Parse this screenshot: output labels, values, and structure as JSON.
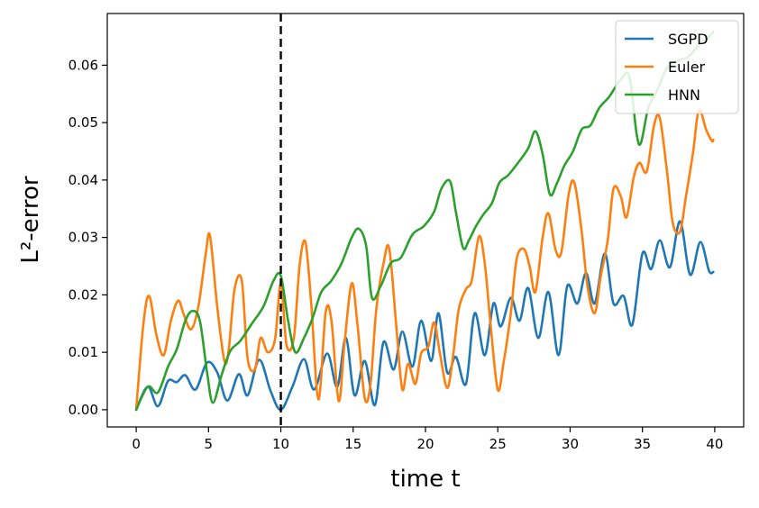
{
  "chart_data": {
    "type": "line",
    "xlabel": "time t",
    "ylabel": "L²-error",
    "xlim": [
      -2,
      42
    ],
    "ylim": [
      -0.003,
      0.069
    ],
    "xticks": [
      0,
      5,
      10,
      15,
      20,
      25,
      30,
      35,
      40
    ],
    "xtick_labels": [
      "0",
      "5",
      "10",
      "15",
      "20",
      "25",
      "30",
      "35",
      "40"
    ],
    "yticks": [
      0.0,
      0.01,
      0.02,
      0.03,
      0.04,
      0.05,
      0.06
    ],
    "ytick_labels": [
      "0.00",
      "0.01",
      "0.02",
      "0.03",
      "0.04",
      "0.05",
      "0.06"
    ],
    "vline": {
      "x": 10,
      "style": "dashed",
      "color": "#000000"
    },
    "legend": {
      "position": "top-right"
    },
    "grid": false,
    "series": [
      {
        "name": "SGPD",
        "color": "#1f77b4",
        "x": [
          0,
          0.8,
          1.5,
          2.2,
          2.8,
          3.4,
          4.1,
          4.9,
          5.6,
          6.3,
          7.1,
          7.7,
          8.5,
          9.3,
          10,
          10.8,
          11.6,
          12.3,
          13.2,
          13.9,
          14.5,
          15.1,
          15.8,
          16.5,
          17.1,
          17.8,
          18.4,
          19.1,
          19.7,
          20.4,
          20.9,
          21.5,
          22.1,
          22.8,
          23.4,
          24.1,
          24.7,
          25.2,
          25.9,
          26.5,
          27.1,
          27.8,
          28.5,
          29.2,
          29.8,
          30.5,
          31.1,
          31.7,
          32.4,
          33,
          33.7,
          34.3,
          35,
          35.6,
          36.2,
          36.9,
          37.6,
          38.3,
          39,
          39.6,
          39.9
        ],
        "y": [
          0.0,
          0.004,
          0.0006,
          0.005,
          0.0048,
          0.006,
          0.0035,
          0.0082,
          0.0065,
          0.0016,
          0.0062,
          0.0025,
          0.0087,
          0.0032,
          0.0,
          0.004,
          0.0088,
          0.0035,
          0.0098,
          0.004,
          0.0125,
          0.0025,
          0.0085,
          0.0008,
          0.0118,
          0.007,
          0.0136,
          0.0075,
          0.0155,
          0.0085,
          0.0168,
          0.0065,
          0.0092,
          0.0045,
          0.0168,
          0.0095,
          0.0185,
          0.0145,
          0.0195,
          0.0155,
          0.0212,
          0.0125,
          0.0205,
          0.0095,
          0.0215,
          0.0185,
          0.0238,
          0.0185,
          0.0272,
          0.0185,
          0.0198,
          0.0148,
          0.0272,
          0.0245,
          0.0295,
          0.0248,
          0.0328,
          0.0235,
          0.0292,
          0.0242,
          0.024
        ]
      },
      {
        "name": "Euler",
        "color": "#ff7f0e",
        "x": [
          0,
          0.5,
          0.9,
          1.4,
          1.9,
          2.4,
          2.9,
          3.3,
          3.8,
          4.3,
          4.8,
          5.1,
          5.6,
          6.1,
          6.4,
          6.8,
          7.3,
          7.7,
          8.2,
          8.6,
          9.1,
          9.6,
          10,
          10.4,
          10.9,
          11.3,
          11.7,
          12.1,
          12.6,
          13.1,
          13.5,
          14,
          14.4,
          14.9,
          15.3,
          15.8,
          16.2,
          16.6,
          17.1,
          17.5,
          18,
          18.4,
          18.8,
          19.3,
          19.7,
          20.2,
          20.6,
          21,
          21.5,
          21.9,
          22.3,
          22.8,
          23.2,
          23.7,
          24.1,
          24.5,
          25,
          25.4,
          25.9,
          26.3,
          26.8,
          27.2,
          27.6,
          28.1,
          28.5,
          29,
          29.4,
          29.9,
          30.3,
          30.8,
          31.2,
          31.7,
          32.1,
          32.6,
          33,
          33.5,
          33.9,
          34.4,
          34.8,
          35.3,
          35.8,
          36.2,
          36.7,
          37.1,
          37.6,
          38,
          38.5,
          38.9,
          39.4,
          39.8,
          39.9
        ],
        "y": [
          0.0,
          0.015,
          0.0198,
          0.013,
          0.0095,
          0.0155,
          0.019,
          0.0165,
          0.014,
          0.018,
          0.027,
          0.0303,
          0.018,
          0.0085,
          0.0105,
          0.021,
          0.0225,
          0.009,
          0.007,
          0.0125,
          0.01,
          0.0123,
          0.022,
          0.0112,
          0.0125,
          0.0252,
          0.0292,
          0.0185,
          0.0018,
          0.017,
          0.0155,
          0.0015,
          0.0115,
          0.022,
          0.0148,
          0.002,
          0.0045,
          0.0175,
          0.0255,
          0.028,
          0.014,
          0.0035,
          0.008,
          0.0045,
          0.0098,
          0.011,
          0.0152,
          0.0098,
          0.0038,
          0.0092,
          0.0175,
          0.021,
          0.0225,
          0.0302,
          0.0255,
          0.0148,
          0.0035,
          0.0082,
          0.0168,
          0.0262,
          0.028,
          0.025,
          0.0205,
          0.03,
          0.0342,
          0.0278,
          0.0275,
          0.0375,
          0.0395,
          0.031,
          0.0215,
          0.0168,
          0.023,
          0.0295,
          0.0385,
          0.0372,
          0.0335,
          0.0405,
          0.043,
          0.0415,
          0.0495,
          0.0508,
          0.0415,
          0.0325,
          0.031,
          0.037,
          0.0448,
          0.0522,
          0.0488,
          0.0468,
          0.047
        ]
      },
      {
        "name": "HNN",
        "color": "#2ca02c",
        "x": [
          0,
          0.8,
          1.5,
          2.2,
          2.8,
          3.4,
          3.9,
          4.4,
          4.9,
          5.3,
          5.9,
          6.5,
          7.2,
          8,
          8.8,
          9.5,
          10,
          10.5,
          11,
          11.6,
          12.2,
          12.8,
          13.5,
          14.2,
          14.9,
          15.4,
          15.9,
          16.3,
          16.9,
          17.6,
          18.3,
          19.1,
          19.9,
          20.6,
          21.1,
          21.7,
          22.1,
          22.6,
          23,
          23.5,
          24,
          24.6,
          25.1,
          25.7,
          26.4,
          27.1,
          27.6,
          28.1,
          28.6,
          29.1,
          29.6,
          30.2,
          30.8,
          31.4,
          32,
          32.7,
          33.5,
          34.1,
          34.6,
          34.9,
          35.4,
          36,
          36.7,
          37.5,
          38.2,
          38.9,
          39.6,
          39.9
        ],
        "y": [
          0.0,
          0.004,
          0.003,
          0.0075,
          0.0105,
          0.0155,
          0.0172,
          0.0155,
          0.0065,
          0.0012,
          0.006,
          0.0102,
          0.012,
          0.015,
          0.018,
          0.0225,
          0.0233,
          0.0155,
          0.01,
          0.0125,
          0.016,
          0.0205,
          0.0225,
          0.0255,
          0.03,
          0.0315,
          0.0285,
          0.0195,
          0.0215,
          0.0255,
          0.0265,
          0.0305,
          0.032,
          0.0345,
          0.0385,
          0.0398,
          0.0345,
          0.0282,
          0.0295,
          0.032,
          0.034,
          0.036,
          0.0395,
          0.0408,
          0.043,
          0.0455,
          0.0485,
          0.0445,
          0.0375,
          0.0395,
          0.0425,
          0.045,
          0.0488,
          0.0495,
          0.0525,
          0.0545,
          0.0575,
          0.058,
          0.048,
          0.0465,
          0.0525,
          0.0555,
          0.0595,
          0.0608,
          0.0615,
          0.0635,
          0.065,
          0.0658
        ]
      }
    ]
  }
}
